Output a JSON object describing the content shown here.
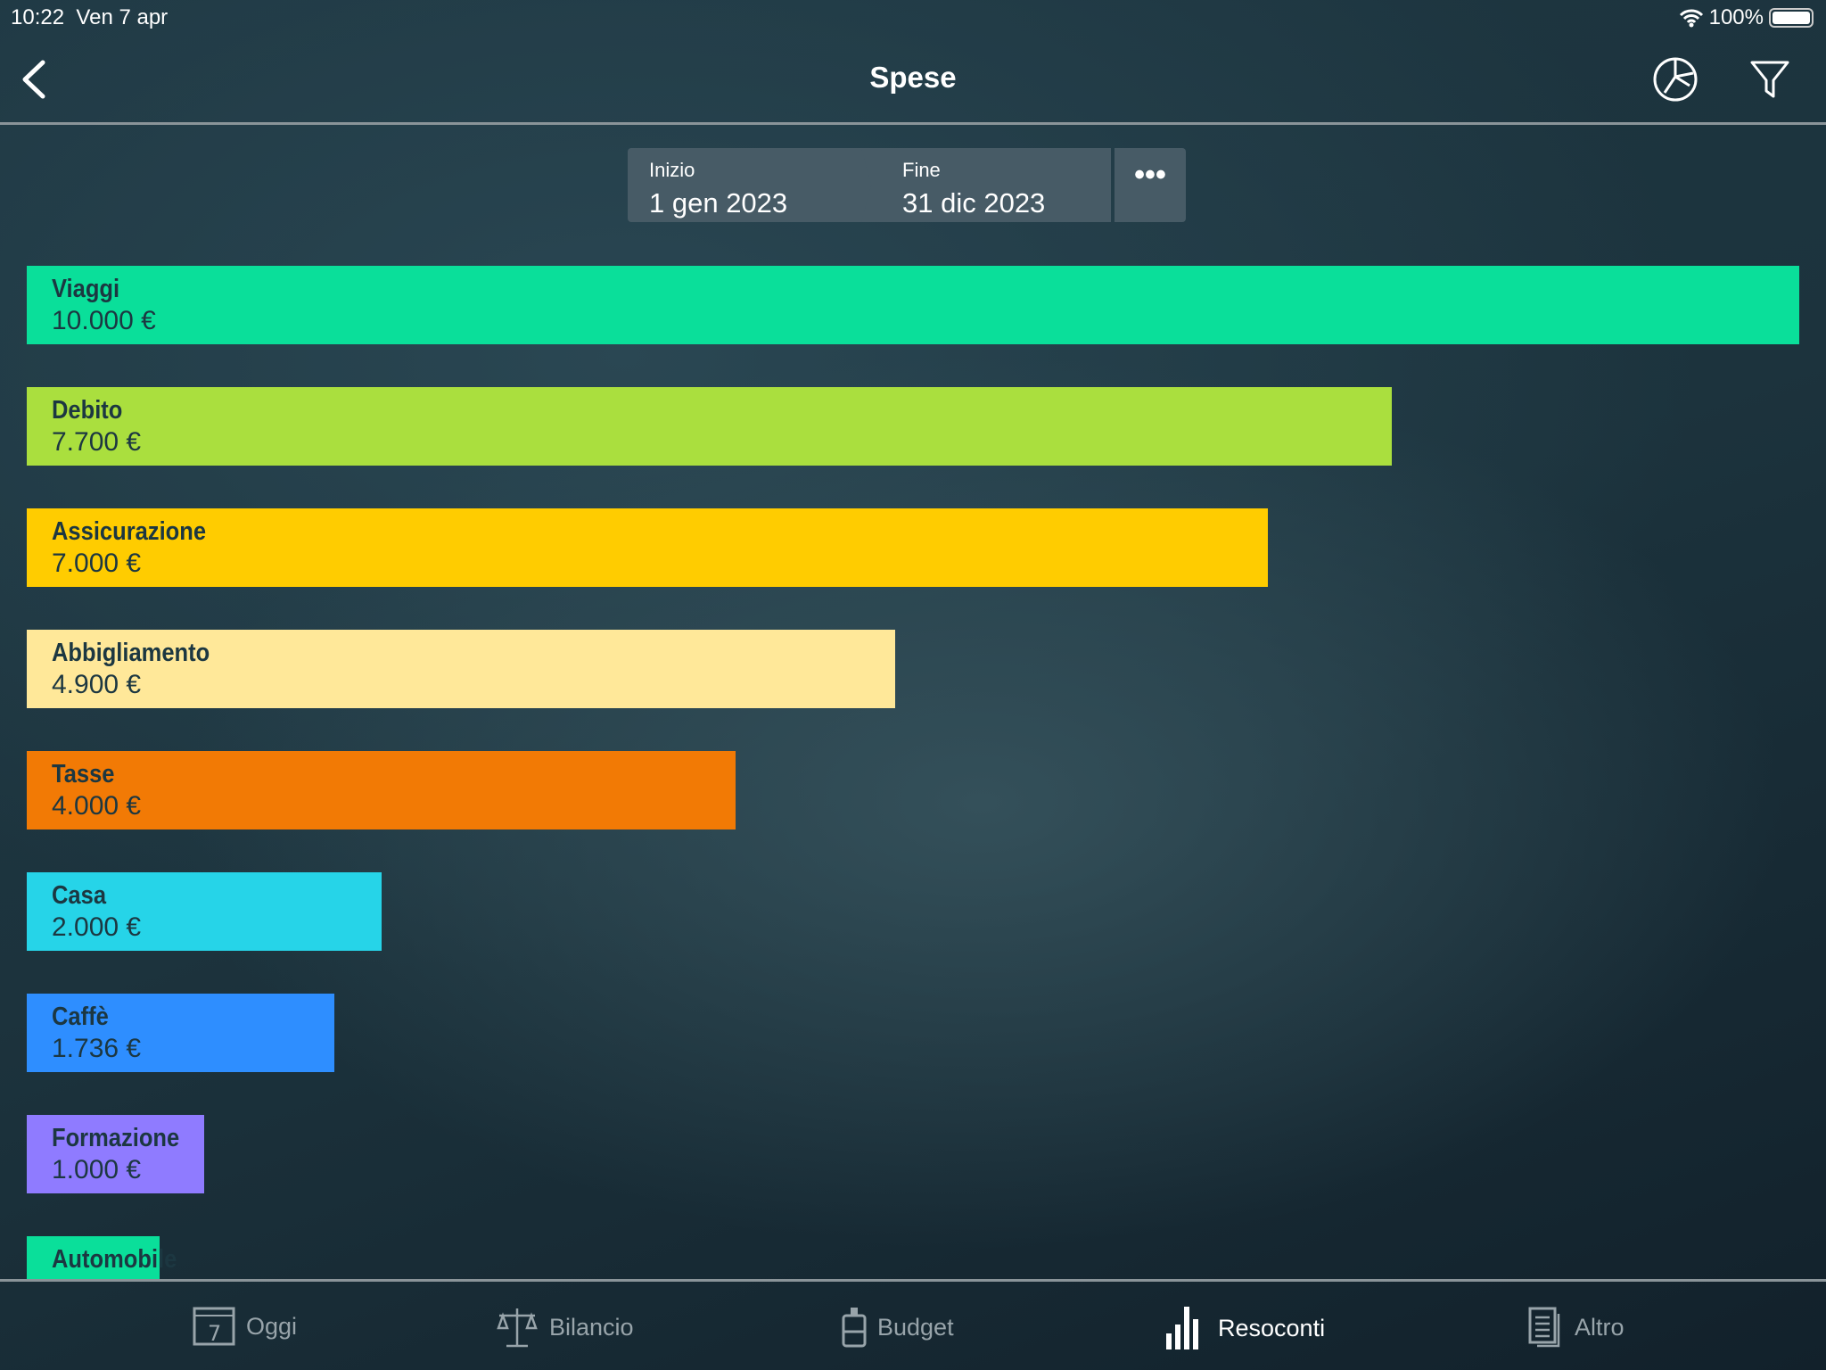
{
  "status_bar": {
    "time": "10:22",
    "date": "Ven 7 apr",
    "battery": "100%"
  },
  "nav": {
    "title": "Spese",
    "back_icon": "chevron-left-icon",
    "chart_icon": "pie-chart-icon",
    "filter_icon": "filter-icon"
  },
  "date_range": {
    "start_label": "Inizio",
    "start_value": "1 gen 2023",
    "end_label": "Fine",
    "end_value": "31 dic 2023",
    "more_label": "•••"
  },
  "chart_data": {
    "type": "bar",
    "orientation": "horizontal",
    "xlim": [
      0,
      10000
    ],
    "categories": [
      "Viaggi",
      "Debito",
      "Assicurazione",
      "Abbigliamento",
      "Tasse",
      "Casa",
      "Caffè",
      "Formazione",
      "Automobile"
    ],
    "values": [
      10000,
      7700,
      7000,
      4900,
      4000,
      2000,
      1736,
      1000,
      750
    ],
    "value_labels": [
      "10.000 €",
      "7.700 €",
      "7.000 €",
      "4.900 €",
      "4.000 €",
      "2.000 €",
      "1.736 €",
      "1.000 €",
      ""
    ],
    "colors": [
      "#0ADF9A",
      "#AADF3E",
      "#FFCC00",
      "#FFE899",
      "#F27A05",
      "#26D4E8",
      "#2E8EFF",
      "#8F7BFF",
      "#0ADF9A"
    ]
  },
  "tabs": [
    {
      "label": "Oggi",
      "icon": "calendar-icon"
    },
    {
      "label": "Bilancio",
      "icon": "scale-icon"
    },
    {
      "label": "Budget",
      "icon": "jar-icon"
    },
    {
      "label": "Resoconti",
      "icon": "bar-chart-icon",
      "active": true
    },
    {
      "label": "Altro",
      "icon": "document-icon"
    }
  ]
}
